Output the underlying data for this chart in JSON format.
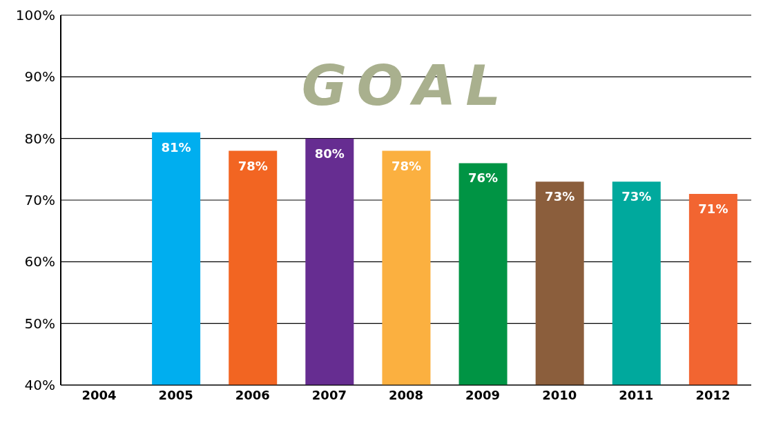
{
  "chart_data": {
    "type": "bar",
    "categories": [
      "2004",
      "2005",
      "2006",
      "2007",
      "2008",
      "2009",
      "2010",
      "2011",
      "2012"
    ],
    "values": [
      null,
      81,
      78,
      80,
      78,
      76,
      73,
      73,
      71
    ],
    "colors": [
      "#00aeef",
      "#00aeef",
      "#f26522",
      "#662d91",
      "#fbb040",
      "#009444",
      "#8b5e3c",
      "#00a99d",
      "#f26531"
    ],
    "value_labels": [
      null,
      "81%",
      "78%",
      "80%",
      "78%",
      "76%",
      "73%",
      "73%",
      "71%"
    ],
    "ylim": [
      40,
      100
    ],
    "yticks": [
      {
        "value": 40,
        "label": "40%"
      },
      {
        "value": 50,
        "label": "50%"
      },
      {
        "value": 60,
        "label": "60%"
      },
      {
        "value": 70,
        "label": "70%"
      },
      {
        "value": 80,
        "label": "80%"
      },
      {
        "value": 90,
        "label": "90%"
      },
      {
        "value": 100,
        "label": "100%"
      }
    ],
    "grid": "y",
    "annotations": [
      "GOAL"
    ]
  }
}
